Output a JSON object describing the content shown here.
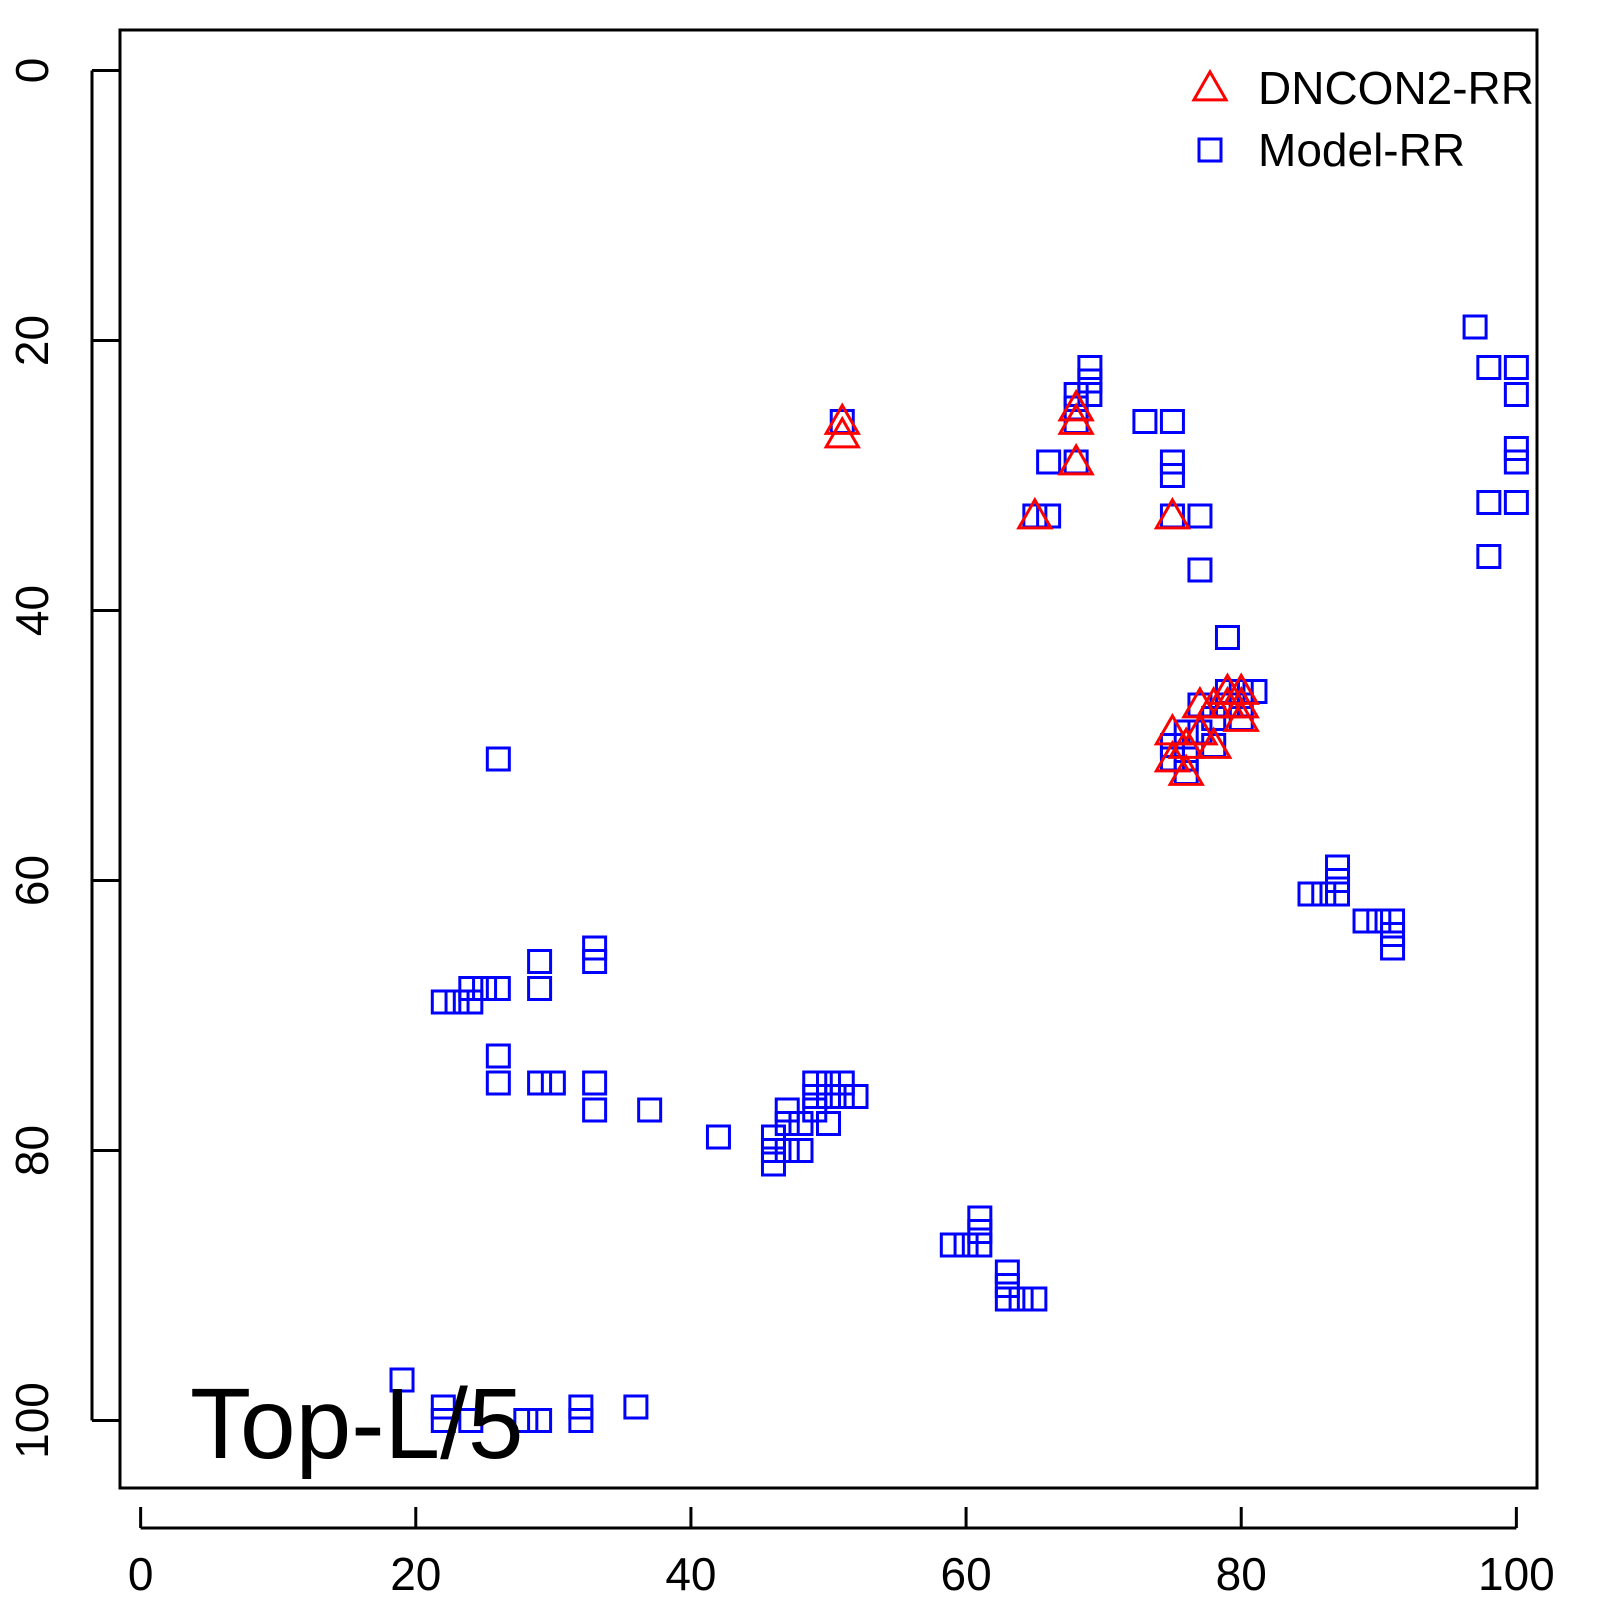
{
  "chart_data": {
    "type": "scatter",
    "title": "",
    "xlabel": "",
    "ylabel": "",
    "xlim": [
      -1.5,
      101.5
    ],
    "ylim": [
      105,
      -3
    ],
    "y_axis_inverted": true,
    "grid": false,
    "legend_position": "top-right",
    "x_ticks": [
      0,
      20,
      40,
      60,
      80,
      100
    ],
    "y_ticks": [
      0,
      20,
      40,
      60,
      80,
      100
    ],
    "annotation": "Top-L/5",
    "series": [
      {
        "name": "DNCON2-RR",
        "marker": "triangle",
        "color": "#ff0000",
        "points": [
          [
            51,
            26
          ],
          [
            51,
            27
          ],
          [
            68,
            25
          ],
          [
            68,
            26
          ],
          [
            68,
            29
          ],
          [
            65,
            33
          ],
          [
            75,
            33
          ],
          [
            75,
            49
          ],
          [
            75,
            51
          ],
          [
            76,
            50
          ],
          [
            76,
            52
          ],
          [
            77,
            47
          ],
          [
            77,
            49
          ],
          [
            78,
            47
          ],
          [
            78,
            50
          ],
          [
            79,
            46
          ],
          [
            79,
            47
          ],
          [
            80,
            46
          ],
          [
            80,
            47
          ],
          [
            80,
            48
          ]
        ]
      },
      {
        "name": "Model-RR",
        "marker": "square",
        "color": "#0000ff",
        "points": [
          [
            51,
            26
          ],
          [
            68,
            24
          ],
          [
            68,
            25
          ],
          [
            68,
            26
          ],
          [
            69,
            22
          ],
          [
            69,
            23
          ],
          [
            69,
            24
          ],
          [
            66,
            29
          ],
          [
            68,
            29
          ],
          [
            65,
            33
          ],
          [
            66,
            33
          ],
          [
            73,
            26
          ],
          [
            75,
            26
          ],
          [
            75,
            29
          ],
          [
            75,
            30
          ],
          [
            75,
            33
          ],
          [
            77,
            33
          ],
          [
            77,
            37
          ],
          [
            79,
            42
          ],
          [
            97,
            19
          ],
          [
            98,
            22
          ],
          [
            100,
            22
          ],
          [
            100,
            24
          ],
          [
            100,
            28
          ],
          [
            100,
            29
          ],
          [
            98,
            32
          ],
          [
            100,
            32
          ],
          [
            98,
            36
          ],
          [
            75,
            50
          ],
          [
            75,
            51
          ],
          [
            76,
            49
          ],
          [
            76,
            51
          ],
          [
            76,
            52
          ],
          [
            77,
            47
          ],
          [
            77,
            49
          ],
          [
            78,
            48
          ],
          [
            78,
            50
          ],
          [
            79,
            46
          ],
          [
            79,
            47
          ],
          [
            80,
            46
          ],
          [
            80,
            47
          ],
          [
            80,
            48
          ],
          [
            81,
            46
          ],
          [
            26,
            51
          ],
          [
            87,
            59
          ],
          [
            87,
            60
          ],
          [
            85,
            61
          ],
          [
            86,
            61
          ],
          [
            87,
            61
          ],
          [
            89,
            63
          ],
          [
            90,
            63
          ],
          [
            91,
            63
          ],
          [
            91,
            64
          ],
          [
            91,
            65
          ],
          [
            33,
            65
          ],
          [
            33,
            66
          ],
          [
            29,
            66
          ],
          [
            29,
            68
          ],
          [
            26,
            68
          ],
          [
            25,
            68
          ],
          [
            24,
            68
          ],
          [
            24,
            69
          ],
          [
            23,
            69
          ],
          [
            22,
            69
          ],
          [
            26,
            73
          ],
          [
            26,
            75
          ],
          [
            29,
            75
          ],
          [
            30,
            75
          ],
          [
            33,
            75
          ],
          [
            33,
            77
          ],
          [
            37,
            77
          ],
          [
            42,
            79
          ],
          [
            46,
            79
          ],
          [
            46,
            80
          ],
          [
            46,
            81
          ],
          [
            47,
            77
          ],
          [
            47,
            78
          ],
          [
            47,
            80
          ],
          [
            48,
            78
          ],
          [
            48,
            80
          ],
          [
            49,
            75
          ],
          [
            49,
            76
          ],
          [
            49,
            77
          ],
          [
            50,
            75
          ],
          [
            50,
            76
          ],
          [
            50,
            78
          ],
          [
            51,
            75
          ],
          [
            51,
            76
          ],
          [
            52,
            76
          ],
          [
            61,
            85
          ],
          [
            61,
            86
          ],
          [
            61,
            87
          ],
          [
            59,
            87
          ],
          [
            60,
            87
          ],
          [
            63,
            89
          ],
          [
            63,
            90
          ],
          [
            63,
            91
          ],
          [
            64,
            91
          ],
          [
            65,
            91
          ],
          [
            19,
            97
          ],
          [
            22,
            99
          ],
          [
            22,
            100
          ],
          [
            24,
            100
          ],
          [
            28,
            100
          ],
          [
            29,
            100
          ],
          [
            32,
            99
          ],
          [
            32,
            100
          ],
          [
            36,
            99
          ]
        ]
      }
    ]
  }
}
